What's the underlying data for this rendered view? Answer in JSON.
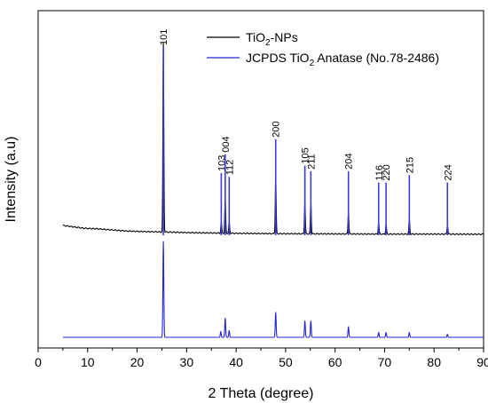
{
  "chart_data": {
    "type": "line",
    "xlabel": "2 Theta (degree)",
    "ylabel": "Intensity (a.u)",
    "xlim": [
      0,
      90
    ],
    "x_ticks": [
      0,
      10,
      20,
      30,
      40,
      50,
      60,
      70,
      80,
      90
    ],
    "y_ticks_shown": false,
    "grid": false,
    "legend_position": "top-right",
    "colors": {
      "sample": "#000000",
      "reference": "#2323d9",
      "peak_marker": "#3a3ae0"
    },
    "series": [
      {
        "name": "TiO2-NPs",
        "legend_main": "TiO",
        "legend_sub": "2",
        "legend_tail": "-NPs",
        "color": "#000000",
        "baseline_x": [
          5,
          7,
          9,
          10,
          12,
          15,
          18,
          22,
          24.5,
          26,
          30,
          40,
          50,
          60,
          70,
          80,
          90
        ],
        "baseline_y": [
          0.052,
          0.045,
          0.038,
          0.036,
          0.034,
          0.028,
          0.022,
          0.019,
          0.018,
          0.017,
          0.014,
          0.01,
          0.008,
          0.007,
          0.006,
          0.006,
          0.005
        ],
        "peaks": [
          {
            "two_theta": 25.3,
            "intensity": 1.0
          },
          {
            "two_theta": 37.0,
            "intensity": 0.06
          },
          {
            "two_theta": 37.8,
            "intensity": 0.18
          },
          {
            "two_theta": 38.6,
            "intensity": 0.06
          },
          {
            "two_theta": 48.0,
            "intensity": 0.3
          },
          {
            "two_theta": 53.9,
            "intensity": 0.17
          },
          {
            "two_theta": 55.1,
            "intensity": 0.17
          },
          {
            "two_theta": 62.7,
            "intensity": 0.12
          },
          {
            "two_theta": 68.8,
            "intensity": 0.06
          },
          {
            "two_theta": 70.3,
            "intensity": 0.05
          },
          {
            "two_theta": 75.0,
            "intensity": 0.08
          },
          {
            "two_theta": 82.7,
            "intensity": 0.05
          }
        ]
      },
      {
        "name": "JCPDS TiO2 Anatase (No.78-2486)",
        "legend_main": "JCPDS TiO",
        "legend_sub": "2",
        "legend_tail": " Anatase (No.78-2486)",
        "color": "#2323d9",
        "peaks": [
          {
            "two_theta": 25.3,
            "intensity": 1.0
          },
          {
            "two_theta": 36.9,
            "intensity": 0.06
          },
          {
            "two_theta": 37.8,
            "intensity": 0.2
          },
          {
            "two_theta": 38.6,
            "intensity": 0.07
          },
          {
            "two_theta": 48.0,
            "intensity": 0.26
          },
          {
            "two_theta": 53.9,
            "intensity": 0.17
          },
          {
            "two_theta": 55.1,
            "intensity": 0.17
          },
          {
            "two_theta": 62.7,
            "intensity": 0.11
          },
          {
            "two_theta": 68.8,
            "intensity": 0.05
          },
          {
            "two_theta": 70.3,
            "intensity": 0.05
          },
          {
            "two_theta": 75.0,
            "intensity": 0.05
          },
          {
            "two_theta": 82.7,
            "intensity": 0.03
          }
        ]
      }
    ],
    "peak_labels": [
      {
        "label": "101",
        "two_theta": 25.3,
        "marker_top": 1.0
      },
      {
        "label": "103",
        "two_theta": 37.0,
        "marker_top": 0.33
      },
      {
        "label": "004",
        "two_theta": 37.8,
        "marker_top": 0.43
      },
      {
        "label": "112",
        "two_theta": 38.6,
        "marker_top": 0.31
      },
      {
        "label": "200",
        "two_theta": 48.0,
        "marker_top": 0.51
      },
      {
        "label": "105",
        "two_theta": 53.9,
        "marker_top": 0.37
      },
      {
        "label": "211",
        "two_theta": 55.1,
        "marker_top": 0.34
      },
      {
        "label": "204",
        "two_theta": 62.7,
        "marker_top": 0.34
      },
      {
        "label": "116",
        "two_theta": 68.8,
        "marker_top": 0.28
      },
      {
        "label": "220",
        "two_theta": 70.3,
        "marker_top": 0.28
      },
      {
        "label": "215",
        "two_theta": 75.0,
        "marker_top": 0.32
      },
      {
        "label": "224",
        "two_theta": 82.7,
        "marker_top": 0.28
      }
    ]
  }
}
